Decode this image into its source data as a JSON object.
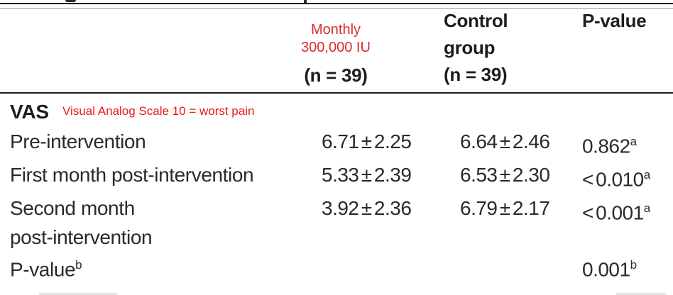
{
  "colors": {
    "intervention_header_red": "#d92c2a",
    "annotation_red": "#ec1515",
    "text": "#242424",
    "rule": "#1b1b1b"
  },
  "header": {
    "col1_line1": "Monthly",
    "col1_line2": "300,000 IU",
    "col1_n": "(n = 39)",
    "col2_line1": "Control",
    "col2_line2": "group",
    "col2_n": "(n = 39)",
    "col3": "P-value"
  },
  "section": {
    "label": "VAS",
    "annotation": "Visual Analog Scale 10 = worst pain"
  },
  "rows": [
    {
      "label": "Pre-intervention",
      "intervention": "6.71 ± 2.25",
      "control": "6.64 ± 2.46",
      "p": "0.862",
      "p_sup": "a"
    },
    {
      "label": "First month post-intervention",
      "intervention": "5.33 ± 2.39",
      "control": "6.53 ± 2.30",
      "p": "< 0.010",
      "p_sup": "a"
    },
    {
      "label": "Second month\npost-intervention",
      "intervention": "3.92 ± 2.36",
      "control": "6.79 ± 2.17",
      "p": "< 0.001",
      "p_sup": "a"
    },
    {
      "label": "P-value",
      "label_sup": "b",
      "intervention": "",
      "control": "",
      "p": "0.001",
      "p_sup": "b"
    }
  ]
}
